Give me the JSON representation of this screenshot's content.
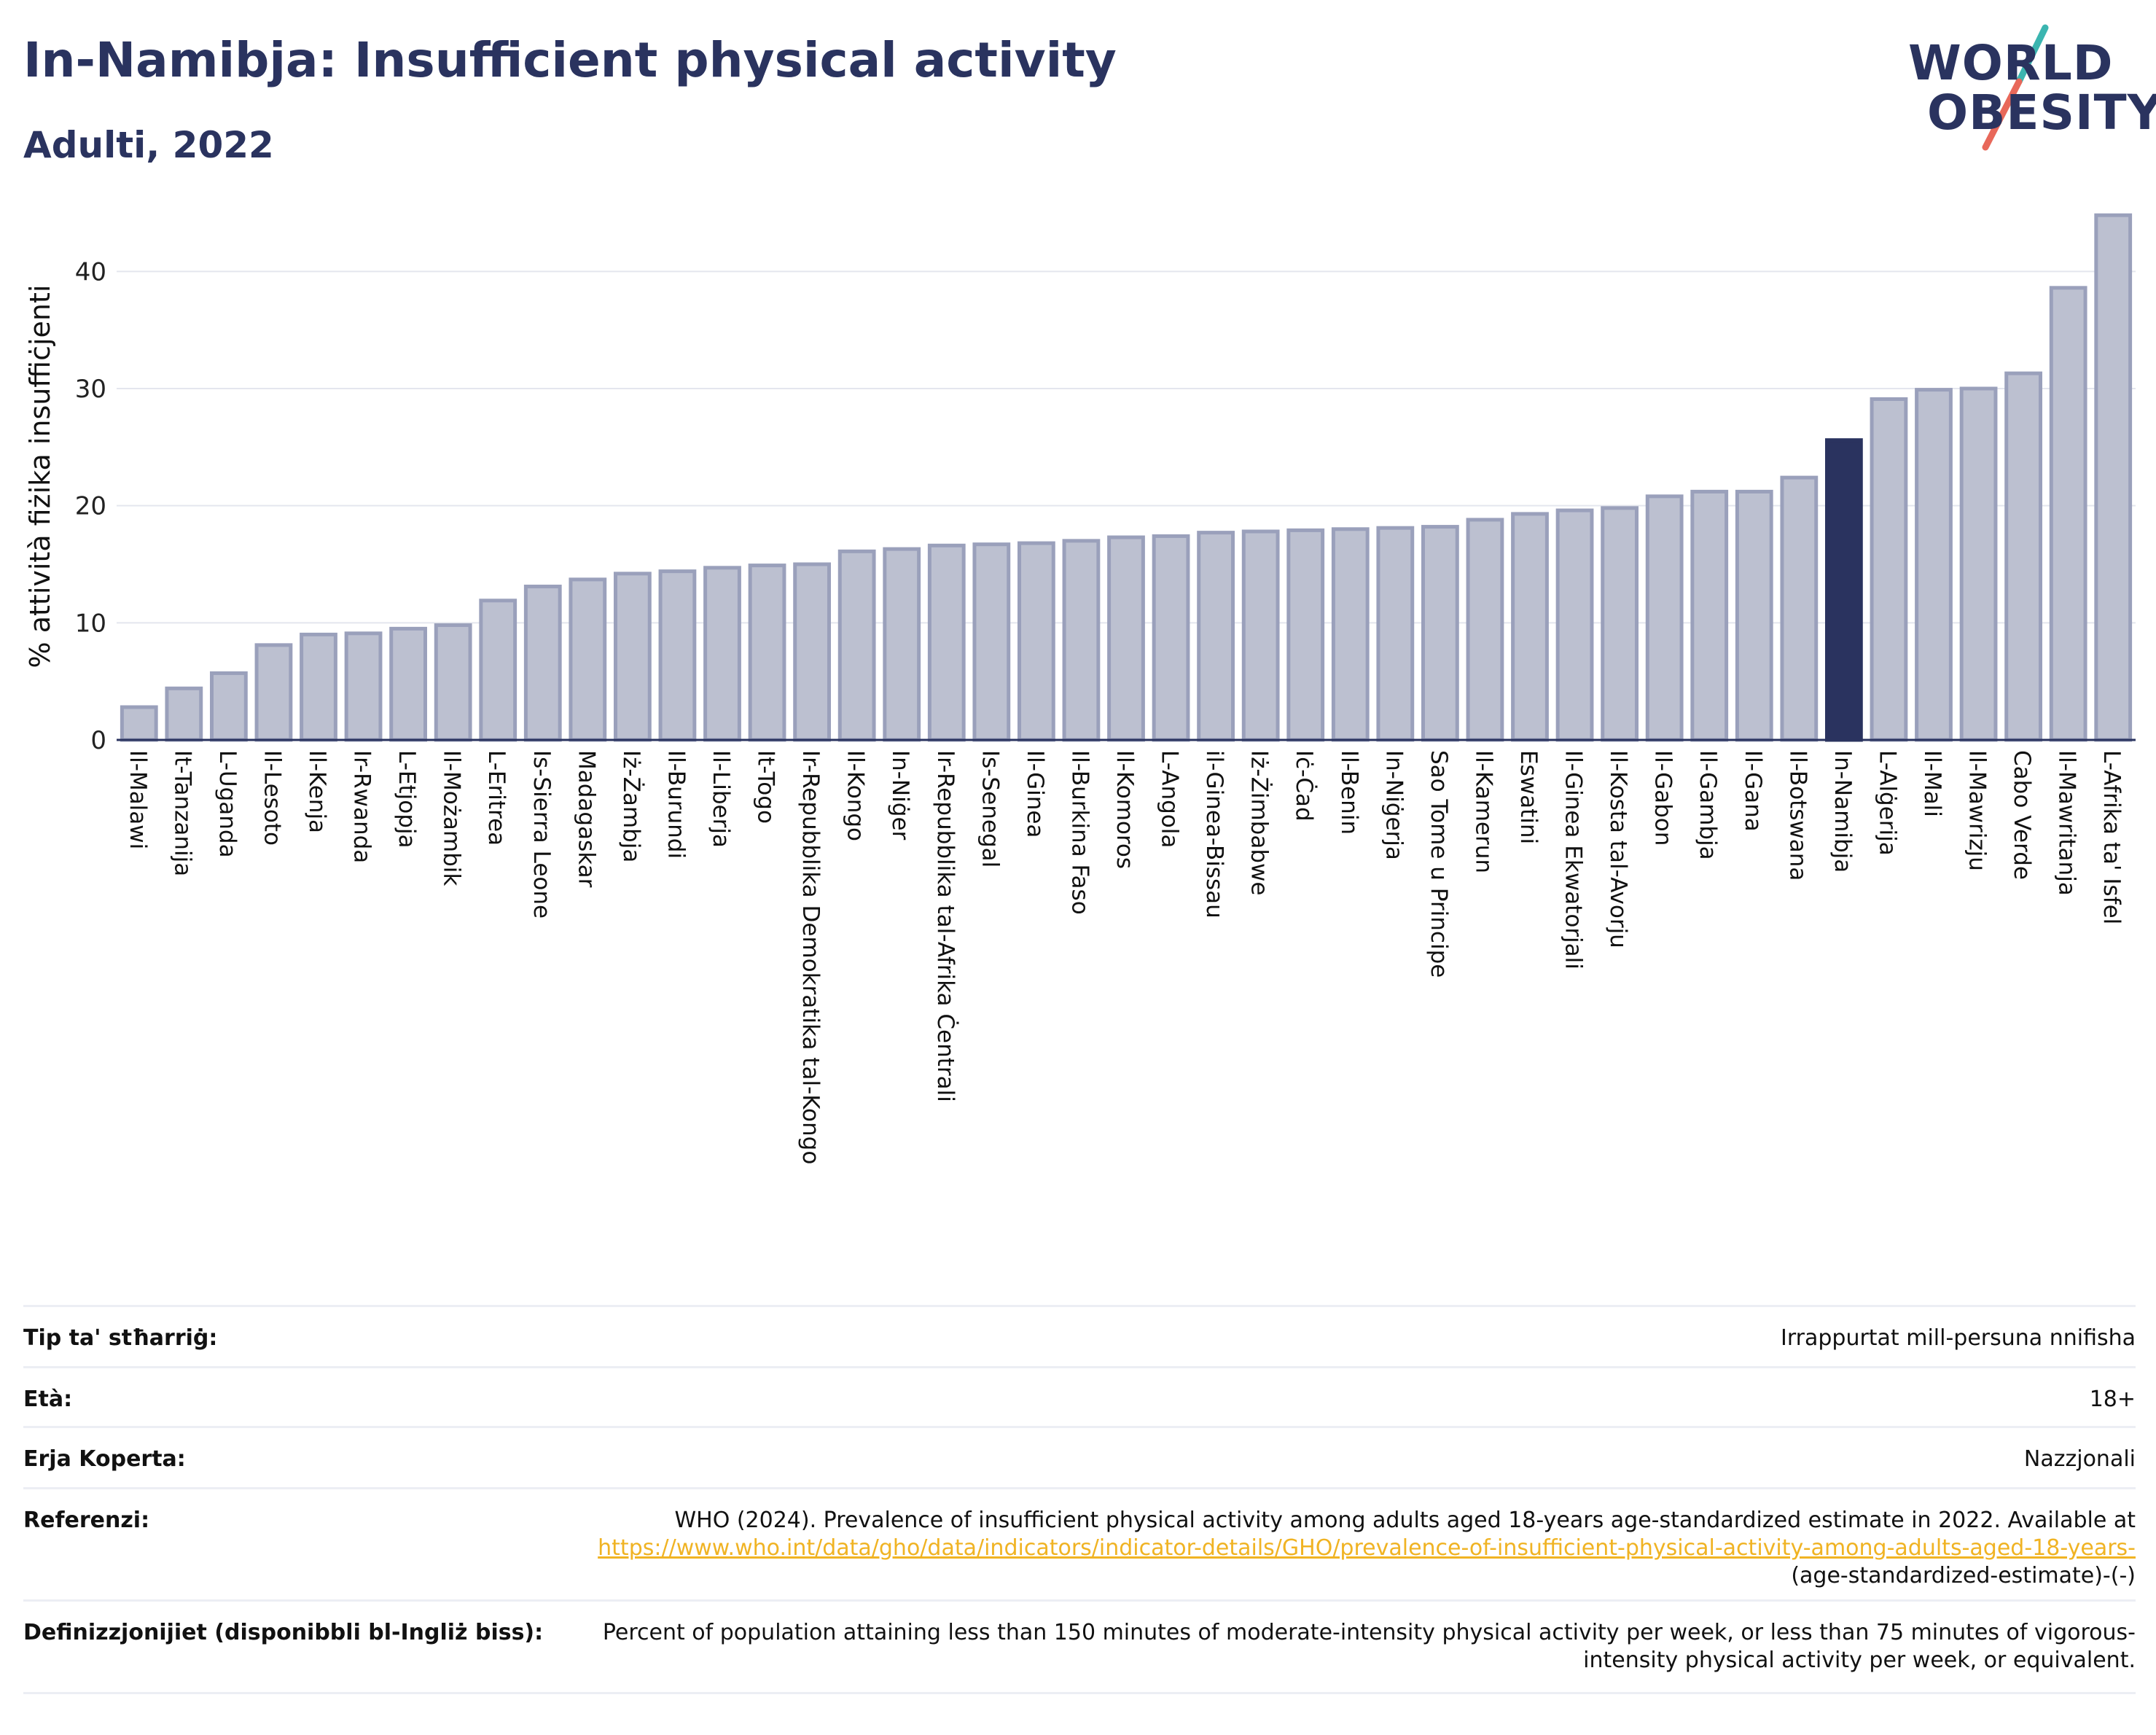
{
  "header": {
    "title": "In-Namibja: Insufficient physical activity",
    "subtitle": "Adulti, 2022"
  },
  "logo": {
    "line1": "WORLD",
    "line2": "OBESITY",
    "accent_teal": "#3bb5b0",
    "accent_red": "#e8685a"
  },
  "colors": {
    "bar": "#bcc0d0",
    "bar_edge": "#9aa0bb",
    "highlight": "#2a335f",
    "grid": "#e4e6ee"
  },
  "chart_data": {
    "type": "bar",
    "title": "",
    "xlabel": "",
    "ylabel": "% attività fiżika insuffiċjenti",
    "ylim": [
      0,
      45
    ],
    "yticks": [
      0,
      10,
      20,
      30,
      40
    ],
    "grid": true,
    "highlight": "In-Namibja",
    "categories": [
      "Il-Malawi",
      "It-Tanzanija",
      "L-Uganda",
      "Il-Lesoto",
      "Il-Kenja",
      "Ir-Rwanda",
      "L-Etjopja",
      "Il-Możambik",
      "L-Eritrea",
      "Is-Sierra Leone",
      "Madagaskar",
      "Iż-Żambja",
      "Il-Burundi",
      "Il-Liberja",
      "It-Togo",
      "Ir-Repubblika Demokratika tal-Kongo",
      "Il-Kongo",
      "In-Niġer",
      "Ir-Repubblika tal-Afrika Ċentrali",
      "Is-Senegal",
      "Il-Ginea",
      "Il-Burkina Faso",
      "Il-Komoros",
      "L-Angola",
      "il-Ginea-Bissau",
      "Iż-Żimbabwe",
      "Iċ-Ċad",
      "Il-Benin",
      "In-Niġerja",
      "Sao Tome u Principe",
      "Il-Kamerun",
      "Eswatini",
      "Il-Ginea Ekwatorjali",
      "Il-Kosta tal-Avorju",
      "Il-Gabon",
      "Il-Gambja",
      "Il-Gana",
      "Il-Botswana",
      "In-Namibja",
      "L-Alġerija",
      "Il-Mali",
      "Il-Mawrizju",
      "Cabo Verde",
      "Il-Mawritanja",
      "L-Afrika ta' Isfel"
    ],
    "values": [
      2.8,
      4.4,
      5.7,
      8.1,
      9.0,
      9.1,
      9.5,
      9.8,
      11.9,
      13.1,
      13.7,
      14.2,
      14.4,
      14.7,
      14.9,
      15.0,
      16.1,
      16.3,
      16.6,
      16.7,
      16.8,
      17.0,
      17.3,
      17.4,
      17.7,
      17.8,
      17.9,
      18.0,
      18.1,
      18.2,
      18.8,
      19.3,
      19.6,
      19.8,
      20.8,
      21.2,
      21.2,
      22.4,
      25.6,
      29.1,
      29.9,
      30.0,
      31.3,
      38.6,
      44.8
    ]
  },
  "meta": [
    {
      "label": "Tip ta' stħarriġ:",
      "value": "Irrappurtat mill-persuna nnifisha"
    },
    {
      "label": "Età:",
      "value": "18+"
    },
    {
      "label": "Erja Koperta:",
      "value": "Nazzjonali"
    },
    {
      "label": "Referenzi:",
      "value": "WHO (2024). Prevalence of insufficient physical activity among adults aged 18-years age-standardized estimate in 2022. Available at",
      "link": "https://www.who.int/data/gho/data/indicators/indicator-details/GHO/prevalence-of-insufficient-physical-activity-among-adults-aged-18-years-",
      "suffix": "(age-standardized-estimate)-(-)"
    },
    {
      "label": "Definizzjonijiet (disponibbli bl-Ingliż biss):",
      "value": "Percent of population attaining less than 150 minutes of moderate-intensity physical activity per week, or less than 75 minutes of vigorous-intensity physical activity per week, or equivalent."
    }
  ]
}
